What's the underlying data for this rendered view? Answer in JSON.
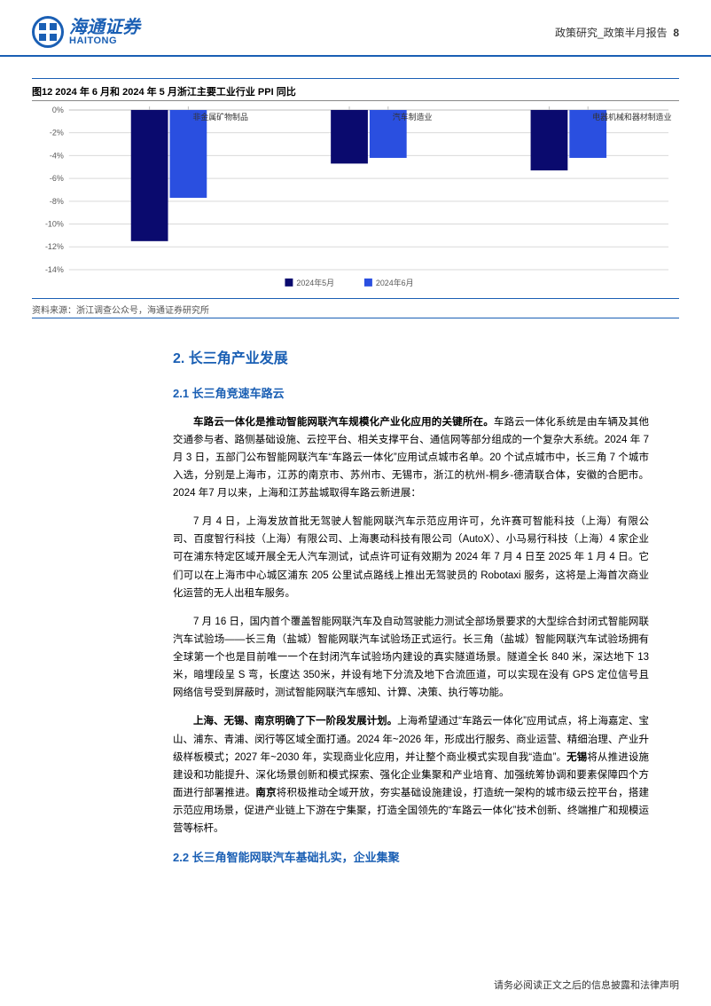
{
  "header": {
    "logo_cn": "海通证券",
    "logo_en": "HAITONG",
    "breadcrumb": "政策研究_政策半月报告",
    "page_num": "8"
  },
  "chart": {
    "type": "bar",
    "title": "图12 2024 年 6 月和 2024 年 5 月浙江主要工业行业 PPI 同比",
    "categories": [
      "非金属矿物制品",
      "汽车制造业",
      "电器机械和器材制造业"
    ],
    "series": [
      {
        "name": "2024年5月",
        "color": "#0a0a6e",
        "values": [
          -11.5,
          -4.7,
          -5.3
        ]
      },
      {
        "name": "2024年6月",
        "color": "#2a4fe0",
        "values": [
          -7.7,
          -4.2,
          -4.2
        ]
      }
    ],
    "ylim": [
      -14,
      0
    ],
    "ytick_step": 2,
    "ytick_labels": [
      "0%",
      "-2%",
      "-4%",
      "-6%",
      "-8%",
      "-10%",
      "-12%",
      "-14%"
    ],
    "grid_color": "#d9d9d9",
    "axis_color": "#bfbfbf",
    "background_color": "#ffffff",
    "label_fontsize": 9,
    "tick_fontsize": 9,
    "source": "资料来源：浙江调查公众号，海通证券研究所"
  },
  "sections": {
    "h2": "2.  长三角产业发展",
    "s21": {
      "h3": "2.1 长三角竞速车路云",
      "p1_bold": "车路云一体化是推动智能网联汽车规模化产业化应用的关键所在。",
      "p1_rest": "车路云一体化系统是由车辆及其他交通参与者、路侧基础设施、云控平台、相关支撑平台、通信网等部分组成的一个复杂大系统。2024 年 7 月 3 日，五部门公布智能网联汽车“车路云一体化”应用试点城市名单。20 个试点城市中，长三角 7 个城市入选，分别是上海市，江苏的南京市、苏州市、无锡市，浙江的杭州-桐乡-德清联合体，安徽的合肥市。2024 年7 月以来，上海和江苏盐城取得车路云新进展：",
      "p2": "7 月 4 日，上海发放首批无驾驶人智能网联汽车示范应用许可，允许赛可智能科技（上海）有限公司、百度智行科技（上海）有限公司、上海裹动科技有限公司（AutoX）、小马易行科技（上海）4 家企业可在浦东特定区域开展全无人汽车测试，试点许可证有效期为 2024 年 7 月 4 日至 2025 年 1 月 4 日。它们可以在上海市中心城区浦东 205 公里试点路线上推出无驾驶员的 Robotaxi 服务，这将是上海首次商业化运营的无人出租车服务。",
      "p3": "7 月 16 日，国内首个覆盖智能网联汽车及自动驾驶能力测试全部场景要求的大型综合封闭式智能网联汽车试验场——长三角（盐城）智能网联汽车试验场正式运行。长三角（盐城）智能网联汽车试验场拥有全球第一个也是目前唯一一个在封闭汽车试验场内建设的真实隧道场景。隧道全长 840 米，深达地下 13 米，暗埋段呈 S 弯，长度达 350米，并设有地下分流及地下合流匝道，可以实现在没有 GPS 定位信号且网络信号受到屏蔽时，测试智能网联汽车感知、计算、决策、执行等功能。",
      "p4_b1": "上海、无锡、南京明确了下一阶段发展计划。",
      "p4_t1": "上海希望通过“车路云一体化”应用试点，将上海嘉定、宝山、浦东、青浦、闵行等区域全面打通。2024 年~2026 年，形成出行服务、商业运营、精细治理、产业升级样板模式；2027 年~2030 年，实现商业化应用，并让整个商业模式实现自我“造血”。",
      "p4_b2": "无锡",
      "p4_t2": "将从推进设施建设和功能提升、深化场景创新和模式探索、强化企业集聚和产业培育、加强统筹协调和要素保障四个方面进行部署推进。",
      "p4_b3": "南京",
      "p4_t3": "将积极推动全域开放，夯实基础设施建设，打造统一架构的城市级云控平台，搭建示范应用场景，促进产业链上下游在宁集聚，打造全国领先的“车路云一体化”技术创新、终端推广和规模运营等标杆。"
    },
    "s22": {
      "h3": "2.2 长三角智能网联汽车基础扎实，企业集聚"
    }
  },
  "footer": "请务必阅读正文之后的信息披露和法律声明"
}
